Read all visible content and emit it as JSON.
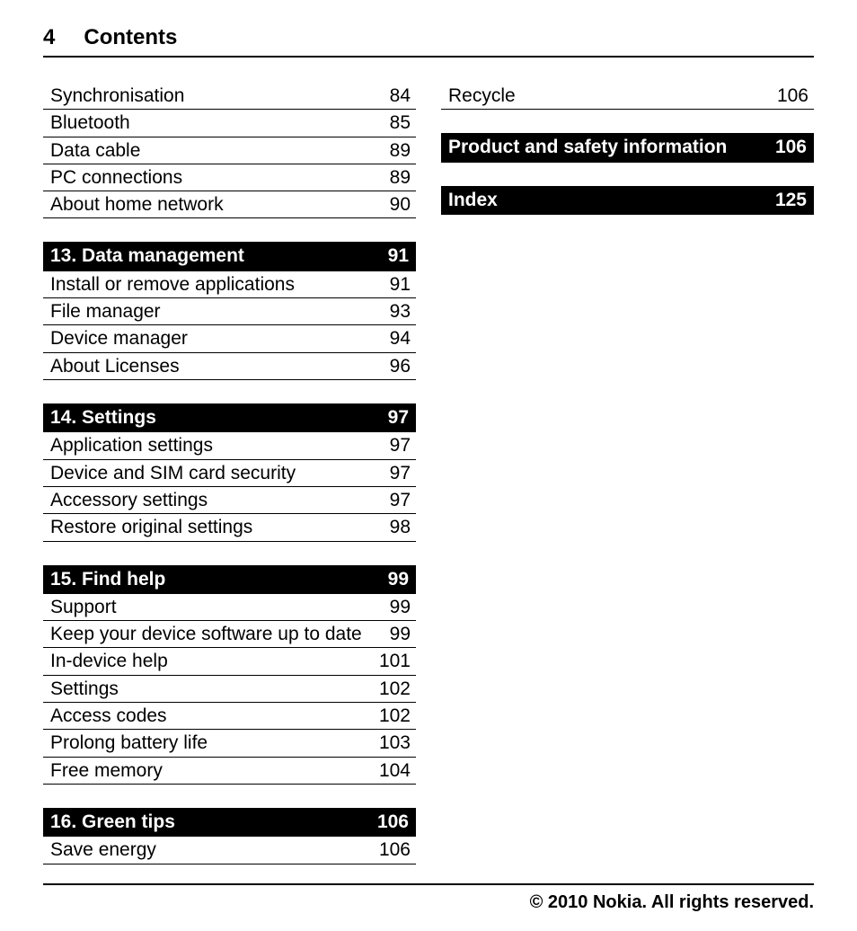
{
  "header": {
    "page_number": "4",
    "title": "Contents"
  },
  "col1": {
    "leading_items": [
      {
        "label": "Synchronisation",
        "page": "84"
      },
      {
        "label": "Bluetooth",
        "page": "85"
      },
      {
        "label": "Data cable",
        "page": "89"
      },
      {
        "label": "PC connections",
        "page": "89"
      },
      {
        "label": "About home network",
        "page": "90"
      }
    ],
    "sections": [
      {
        "heading": "13. Data management",
        "page": "91",
        "items": [
          {
            "label": "Install or remove applications",
            "page": "91"
          },
          {
            "label": "File manager",
            "page": "93"
          },
          {
            "label": "Device manager",
            "page": "94"
          },
          {
            "label": "About Licenses",
            "page": "96"
          }
        ]
      },
      {
        "heading": "14. Settings",
        "page": "97",
        "items": [
          {
            "label": "Application settings",
            "page": "97"
          },
          {
            "label": "Device and SIM card security",
            "page": "97"
          },
          {
            "label": "Accessory settings",
            "page": "97"
          },
          {
            "label": "Restore original settings",
            "page": "98"
          }
        ]
      },
      {
        "heading": "15. Find help",
        "page": "99",
        "items": [
          {
            "label": "Support",
            "page": "99"
          },
          {
            "label": "Keep your device software up to date",
            "page": "99"
          },
          {
            "label": "In-device help",
            "page": "101"
          },
          {
            "label": "Settings",
            "page": "102"
          },
          {
            "label": "Access codes",
            "page": "102"
          },
          {
            "label": "Prolong battery life",
            "page": "103"
          },
          {
            "label": "Free memory",
            "page": "104"
          }
        ]
      },
      {
        "heading": "16. Green tips",
        "page": "106",
        "items": [
          {
            "label": "Save energy",
            "page": "106"
          }
        ]
      }
    ]
  },
  "col2": {
    "leading_items": [
      {
        "label": "Recycle",
        "page": "106"
      }
    ],
    "sections": [
      {
        "heading": "Product and safety information",
        "page": "106",
        "items": []
      },
      {
        "heading": "Index",
        "page": "125",
        "items": []
      }
    ]
  },
  "footer": {
    "copyright": "© 2010 Nokia. All rights reserved."
  }
}
